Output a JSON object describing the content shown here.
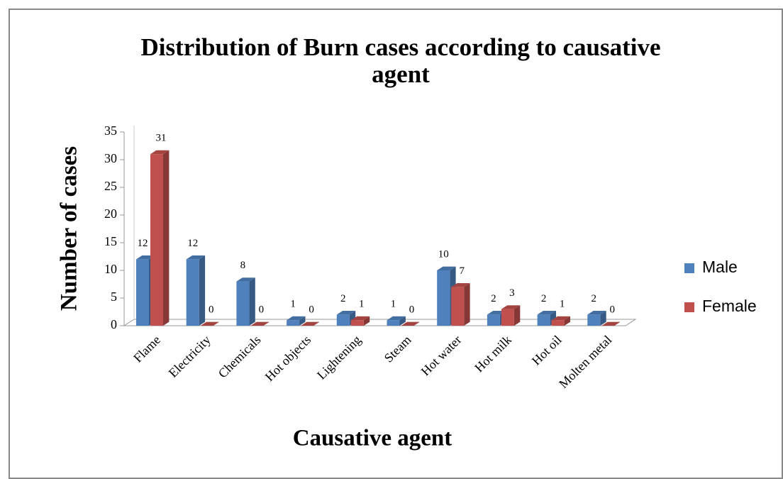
{
  "chart_data": {
    "type": "bar3d",
    "title": "Distribution of Burn cases according to causative agent",
    "xlabel": "Causative agent",
    "ylabel": "Number of cases",
    "categories": [
      "Flame",
      "Electricity",
      "Chemicals",
      "Hot objects",
      "Lightening",
      "Steam",
      "Hot water",
      "Hot milk",
      "Hot oil",
      "Molten metal"
    ],
    "series": [
      {
        "name": "Male",
        "color": "#4f81bd",
        "values": [
          12,
          12,
          8,
          1,
          2,
          1,
          10,
          2,
          2,
          2
        ]
      },
      {
        "name": "Female",
        "color": "#c0504d",
        "values": [
          31,
          0,
          0,
          0,
          1,
          0,
          7,
          3,
          1,
          0
        ]
      }
    ],
    "ylim": [
      0,
      35
    ],
    "yticks": [
      0,
      5,
      10,
      15,
      20,
      25,
      30,
      35
    ],
    "legend": "right",
    "grid": false
  }
}
